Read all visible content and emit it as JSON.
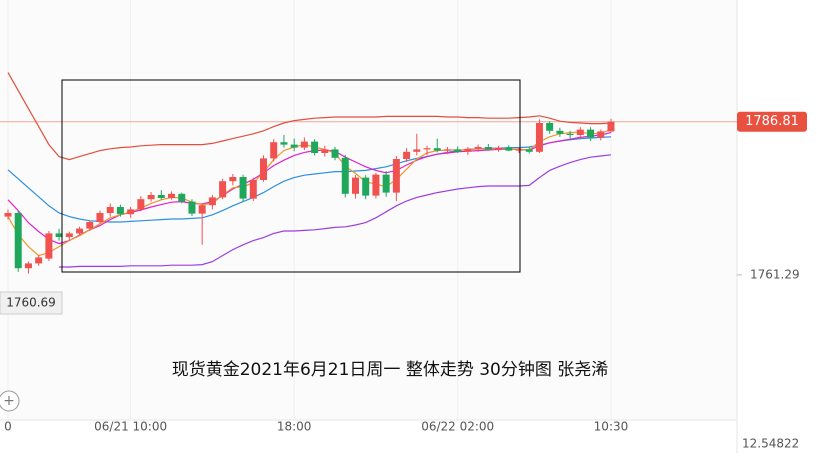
{
  "chart_data": {
    "type": "candlestick",
    "title": "现货黄金2021年6月21日周一 整体走势 30分钟图 张尧浠",
    "categories": [
      "0",
      null,
      null,
      null,
      null,
      null,
      null,
      null,
      null,
      null,
      null,
      null,
      "06/21 10:00",
      null,
      null,
      null,
      null,
      null,
      null,
      null,
      null,
      null,
      null,
      null,
      null,
      null,
      null,
      null,
      "18:00",
      null,
      null,
      null,
      null,
      null,
      null,
      null,
      null,
      null,
      null,
      null,
      null,
      null,
      null,
      null,
      "06/22 02:00",
      null,
      null,
      null,
      null,
      null,
      null,
      null,
      null,
      null,
      null,
      null,
      null,
      null,
      null,
      "10:30"
    ],
    "open": [
      1771.0,
      1771.6,
      1762.4,
      1763.2,
      1764.0,
      1768.2,
      1767.6,
      1768.2,
      1769.0,
      1770.1,
      1771.6,
      1772.6,
      1771.4,
      1772.2,
      1773.9,
      1774.6,
      1774.1,
      1774.8,
      1773.5,
      1771.5,
      1772.9,
      1774.2,
      1776.9,
      1777.6,
      1774.0,
      1777.1,
      1780.7,
      1783.4,
      1783.0,
      1782.5,
      1783.5,
      1781.6,
      1782.2,
      1780.8,
      1774.8,
      1777.5,
      1774.5,
      1778.0,
      1775.0,
      1780.6,
      1781.8,
      1782.2,
      1782.4,
      1782.0,
      1782.2,
      1781.8,
      1782.3,
      1782.6,
      1782.2,
      1782.5,
      1782.0,
      1782.2,
      1781.8,
      1786.6,
      1785.3,
      1784.8,
      1784.6,
      1785.5,
      1784.2,
      1785.2
    ],
    "high": [
      1772.2,
      1772.0,
      1763.5,
      1764.6,
      1768.6,
      1769.0,
      1768.5,
      1769.3,
      1770.4,
      1772.0,
      1773.2,
      1773.0,
      1772.6,
      1774.4,
      1775.1,
      1775.4,
      1775.2,
      1775.0,
      1773.9,
      1773.2,
      1774.6,
      1777.3,
      1778.1,
      1778.0,
      1777.5,
      1781.2,
      1783.9,
      1784.6,
      1784.0,
      1784.2,
      1783.9,
      1782.8,
      1782.6,
      1781.3,
      1777.9,
      1777.9,
      1778.3,
      1778.6,
      1781.1,
      1782.4,
      1784.8,
      1782.8,
      1784.0,
      1782.6,
      1782.7,
      1782.6,
      1783.0,
      1783.1,
      1782.8,
      1782.9,
      1782.5,
      1782.6,
      1787.2,
      1786.9,
      1785.8,
      1785.3,
      1785.9,
      1785.9,
      1785.5,
      1787.3
    ],
    "low": [
      1770.5,
      1761.8,
      1761.5,
      1762.8,
      1763.6,
      1767.0,
      1767.0,
      1767.9,
      1768.6,
      1769.8,
      1771.0,
      1771.0,
      1770.8,
      1771.9,
      1773.5,
      1773.8,
      1773.8,
      1773.2,
      1771.1,
      1766.3,
      1772.2,
      1773.9,
      1776.2,
      1773.5,
      1773.6,
      1776.8,
      1780.2,
      1782.5,
      1781.9,
      1782.1,
      1781.2,
      1781.0,
      1780.4,
      1774.2,
      1774.0,
      1773.9,
      1774.0,
      1774.3,
      1773.6,
      1780.1,
      1781.2,
      1781.2,
      1781.7,
      1781.4,
      1781.6,
      1781.3,
      1781.8,
      1782.0,
      1781.8,
      1781.9,
      1781.6,
      1781.5,
      1781.6,
      1784.8,
      1784.3,
      1784.0,
      1783.9,
      1783.6,
      1783.7,
      1785.0
    ],
    "close": [
      1771.6,
      1762.4,
      1763.2,
      1764.2,
      1768.2,
      1767.6,
      1768.2,
      1769.0,
      1770.1,
      1771.6,
      1772.6,
      1771.4,
      1772.2,
      1773.9,
      1774.6,
      1774.1,
      1774.8,
      1773.5,
      1771.5,
      1772.9,
      1774.2,
      1776.9,
      1777.6,
      1774.0,
      1777.1,
      1780.7,
      1783.4,
      1783.0,
      1782.5,
      1783.5,
      1781.6,
      1782.2,
      1780.8,
      1774.8,
      1777.5,
      1774.5,
      1778.0,
      1775.0,
      1780.6,
      1781.8,
      1782.2,
      1782.4,
      1782.0,
      1782.2,
      1781.8,
      1782.3,
      1782.6,
      1782.2,
      1782.5,
      1782.0,
      1782.2,
      1781.8,
      1786.6,
      1785.3,
      1784.8,
      1784.6,
      1785.5,
      1784.2,
      1785.2,
      1786.81
    ],
    "up_color": "#f0524f",
    "down_color": "#1fa85c",
    "lines": [
      {
        "color": "#e0503c",
        "values": [
          1795,
          1792,
          1789,
          1786,
          1783,
          1781,
          1780.5,
          1781,
          1781.5,
          1782,
          1782.3,
          1782.5,
          1782.6,
          1782.8,
          1782.9,
          1783,
          1783,
          1783,
          1783,
          1783,
          1783.2,
          1783.6,
          1784,
          1784.4,
          1784.8,
          1785.3,
          1786,
          1786.6,
          1787,
          1787.2,
          1787.4,
          1787.5,
          1787.6,
          1787.6,
          1787.6,
          1787.6,
          1787.6,
          1787.7,
          1787.7,
          1787.7,
          1787.7,
          1787.7,
          1787.7,
          1787.6,
          1787.6,
          1787.5,
          1787.5,
          1787.4,
          1787.4,
          1787.4,
          1787.5,
          1787.6,
          1787.8,
          1787.4,
          1786.9,
          1786.7,
          1786.6,
          1786.5,
          1786.5,
          1786.6
        ]
      },
      {
        "color": "#2e8fe0",
        "values": [
          1778.8,
          1777.3,
          1775.8,
          1774.3,
          1772.8,
          1771.6,
          1771.0,
          1770.6,
          1770.3,
          1770.2,
          1770.1,
          1770.1,
          1770.2,
          1770.3,
          1770.4,
          1770.5,
          1770.6,
          1770.6,
          1770.7,
          1770.8,
          1771.3,
          1772,
          1772.8,
          1773.5,
          1774.2,
          1775,
          1776,
          1776.9,
          1777.5,
          1777.9,
          1778.1,
          1778.3,
          1778.5,
          1778.5,
          1778.6,
          1778.7,
          1779,
          1779.3,
          1779.8,
          1780.3,
          1780.7,
          1781,
          1781.4,
          1781.7,
          1782,
          1782.2,
          1782.3,
          1782.4,
          1782.4,
          1782.5,
          1782.5,
          1782.6,
          1782.9,
          1783.3,
          1783.6,
          1783.8,
          1784,
          1784.1,
          1784.2,
          1784.3
        ]
      },
      {
        "color": "#9b3fe0",
        "values": [
          null,
          null,
          null,
          null,
          null,
          1762.6,
          1762.6,
          1762.7,
          1762.7,
          1762.7,
          1762.7,
          1762.7,
          1762.8,
          1762.8,
          1762.8,
          1762.8,
          1762.9,
          1762.9,
          1762.9,
          1763,
          1763.5,
          1764.5,
          1765.5,
          1766.3,
          1767,
          1767.5,
          1768.2,
          1768.6,
          1768.6,
          1768.7,
          1768.8,
          1769.0,
          1769.2,
          1769.3,
          1769.6,
          1770.0,
          1770.8,
          1771.8,
          1772.8,
          1773.6,
          1774.2,
          1774.6,
          1775.0,
          1775.3,
          1775.6,
          1775.8,
          1776,
          1776.1,
          1776.1,
          1776.1,
          1776.1,
          1776.2,
          1777.5,
          1778.7,
          1779.4,
          1780,
          1780.5,
          1780.9,
          1781.1,
          1781.3
        ]
      },
      {
        "color": "#e020d0",
        "values": [
          1773.8,
          1772,
          1770,
          1768.5,
          1767.2,
          1766.5,
          1767,
          1767.9,
          1768.8,
          1769.5,
          1770.5,
          1771.3,
          1771.7,
          1772.1,
          1772.6,
          1773,
          1773.4,
          1773.5,
          1773.2,
          1773.1,
          1773.5,
          1774.5,
          1775.6,
          1776.4,
          1777.2,
          1778.3,
          1779.5,
          1780.4,
          1781.2,
          1781.7,
          1782,
          1782.1,
          1781.9,
          1780.9,
          1780.1,
          1779.3,
          1778.7,
          1778.3,
          1778.7,
          1779.6,
          1780.4,
          1781,
          1781.4,
          1781.6,
          1781.8,
          1781.9,
          1782,
          1782.1,
          1782.2,
          1782.2,
          1782.2,
          1782.1,
          1782.8,
          1783.3,
          1783.6,
          1783.9,
          1784.2,
          1784.4,
          1784.6,
          1785
        ]
      },
      {
        "color": "#f0962a",
        "values": [
          1771,
          1768,
          1766,
          1764.5,
          1765,
          1766,
          1767,
          1767.8,
          1768.8,
          1769.8,
          1770.8,
          1771.3,
          1771.8,
          1772.4,
          1773.2,
          1773.8,
          1774.2,
          1774.1,
          1773.4,
          1773,
          1773.2,
          1774.6,
          1775.8,
          1776,
          1776.6,
          1778.4,
          1780.5,
          1782,
          1782.6,
          1783,
          1782.6,
          1782.2,
          1781.6,
          1779.4,
          1778.2,
          1776.8,
          1776.4,
          1776,
          1777.2,
          1778.9,
          1780.6,
          1781.6,
          1782,
          1782.1,
          1782.1,
          1782.1,
          1782.3,
          1782.3,
          1782.3,
          1782.2,
          1782.2,
          1782.1,
          1783.5,
          1784.3,
          1784.8,
          1785,
          1785.1,
          1784.8,
          1784.9,
          1785.5
        ]
      }
    ],
    "ylim": [
      1737.1,
      1807.1
    ],
    "yticks": [
      1761.29
    ],
    "last_price": 1786.81,
    "low_marker": 1760.69,
    "indicator_label": "12.54822"
  }
}
